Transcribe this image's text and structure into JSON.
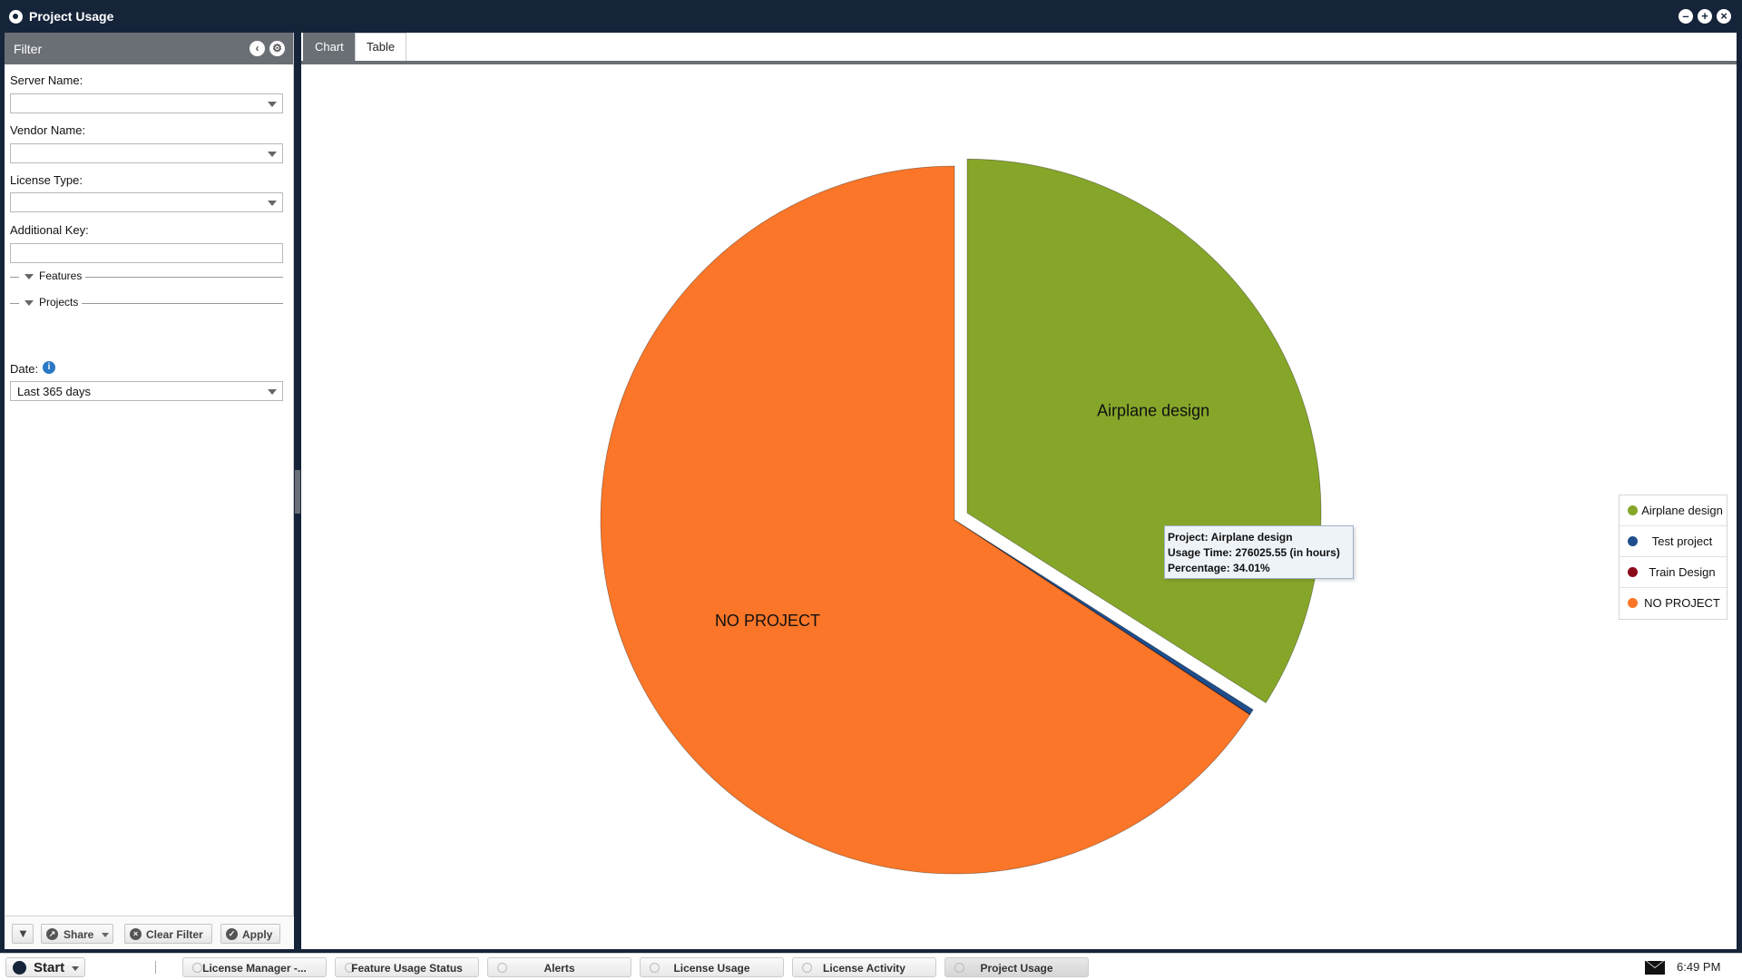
{
  "window": {
    "title": "Project Usage"
  },
  "filter": {
    "title": "Filter",
    "server_label": "Server Name:",
    "server_value": "",
    "vendor_label": "Vendor Name:",
    "vendor_value": "",
    "license_label": "License Type:",
    "license_value": "",
    "additional_label": "Additional Key:",
    "additional_value": "",
    "features_label": "Features",
    "projects_label": "Projects",
    "date_label": "Date:",
    "date_value": "Last 365 days",
    "share_label": "Share",
    "clear_label": "Clear Filter",
    "apply_label": "Apply"
  },
  "tabs": {
    "chart": "Chart",
    "table": "Table"
  },
  "chart_data": {
    "type": "pie",
    "slices": [
      {
        "name": "Airplane design",
        "percent": 34.01,
        "color": "#86a62a",
        "exploded": true
      },
      {
        "name": "Test project",
        "percent": 0.25,
        "color": "#1f4e8c"
      },
      {
        "name": "Train Design",
        "percent": 0.02,
        "color": "#8b0a1a"
      },
      {
        "name": "NO PROJECT",
        "percent": 65.72,
        "color": "#fb7628"
      }
    ],
    "slice_labels": [
      "Airplane design",
      "NO PROJECT"
    ],
    "legend_placement": "right",
    "title": ""
  },
  "tooltip": {
    "line1": "Project: Airplane design",
    "line2": "Usage Time: 276025.55 (in hours)",
    "line3": "Percentage: 34.01%"
  },
  "legend": [
    {
      "label": "Airplane design",
      "color": "#86a62a"
    },
    {
      "label": "Test project",
      "color": "#1f4e8c"
    },
    {
      "label": "Train Design",
      "color": "#8b0a1a"
    },
    {
      "label": "NO PROJECT",
      "color": "#fb7628"
    }
  ],
  "taskbar": {
    "start": "Start",
    "tasks": [
      "License Manager -...",
      "Feature Usage Status",
      "Alerts",
      "License Usage",
      "License Activity",
      "Project Usage"
    ],
    "clock": "6:49 PM"
  }
}
